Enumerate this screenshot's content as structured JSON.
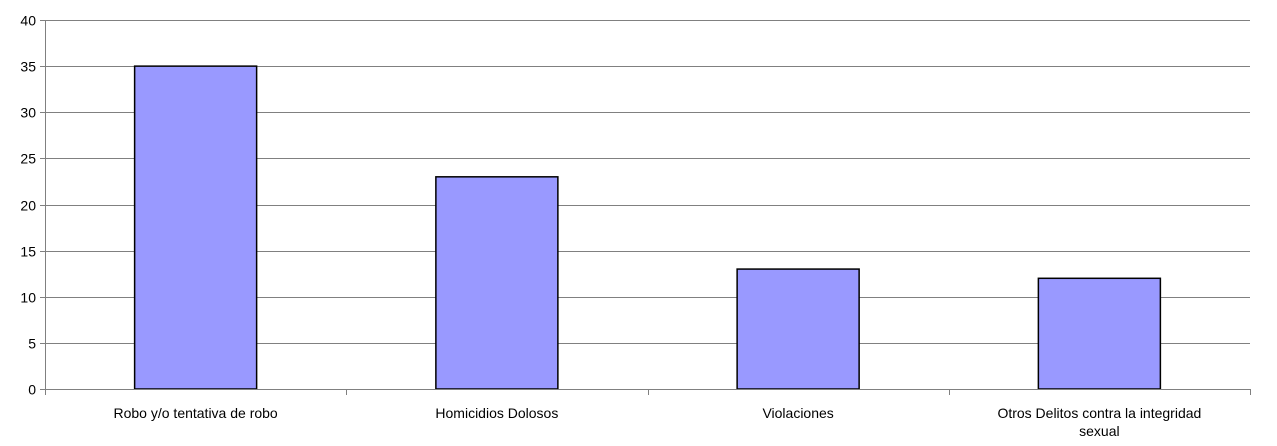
{
  "chart_data": {
    "type": "bar",
    "categories": [
      [
        "Robo y/o tentativa de robo"
      ],
      [
        "Homicidios Dolosos"
      ],
      [
        "Violaciones"
      ],
      [
        "Otros Delitos contra la integridad",
        "sexual"
      ]
    ],
    "values": [
      35,
      23,
      13,
      12
    ],
    "yticks": [
      "0",
      "5",
      "10",
      "15",
      "20",
      "25",
      "30",
      "35",
      "40"
    ],
    "ylim": [
      0,
      40
    ],
    "grid": true,
    "legend": "none",
    "title": "",
    "xlabel": "",
    "ylabel": "",
    "bar_color": "#9999FF",
    "bar_border_color": "#000000",
    "grid_color": "#808080"
  }
}
